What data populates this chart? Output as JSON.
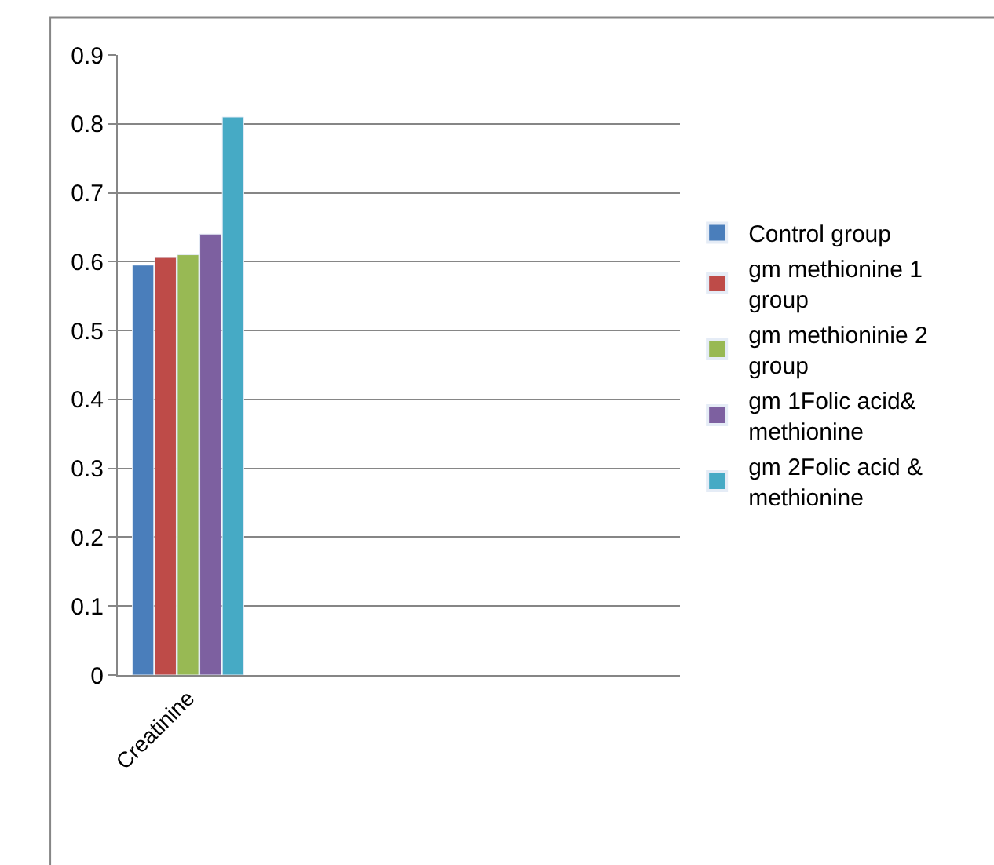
{
  "chart_data": {
    "type": "bar",
    "categories": [
      "Creatinine",
      null,
      null,
      null
    ],
    "series": [
      {
        "name": "Control group",
        "color": "#4a7ebb",
        "values": [
          0.595,
          null,
          null,
          null
        ]
      },
      {
        "name": "gm methionine 1 group",
        "color": "#be4b48",
        "values": [
          0.606,
          null,
          null,
          null
        ]
      },
      {
        "name": "gm methioninie 2 group",
        "color": "#98b954",
        "values": [
          0.61,
          null,
          null,
          null
        ]
      },
      {
        "name": "gm 1Folic acid& methionine",
        "color": "#7d60a0",
        "values": [
          0.64,
          null,
          null,
          null
        ]
      },
      {
        "name": "gm 2Folic acid & methionine",
        "color": "#46aac5",
        "values": [
          0.81,
          null,
          null,
          null
        ]
      }
    ],
    "ylim": [
      0,
      0.9
    ],
    "yticks": [
      0,
      0.1,
      0.2,
      0.3,
      0.4,
      0.5,
      0.6,
      0.7,
      0.8,
      0.9
    ],
    "grid": "y",
    "legend": "right"
  }
}
